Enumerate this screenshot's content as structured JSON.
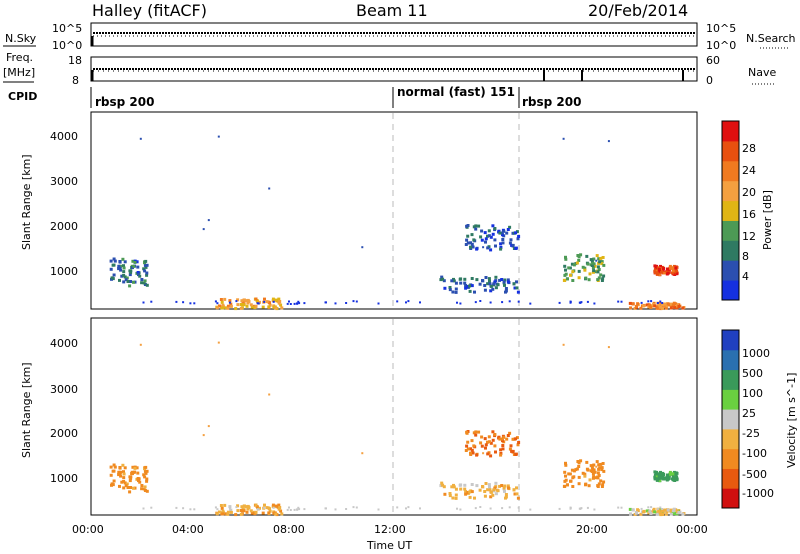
{
  "header": {
    "title": "Halley (fitACF)",
    "beam": "Beam 11",
    "date": "20/Feb/2014"
  },
  "strip1": {
    "left_label": "N.Sky",
    "right_label": "N.Search",
    "left_ticks": [
      "10^5",
      "10^0"
    ],
    "right_ticks": [
      "10^5",
      "10^0"
    ]
  },
  "strip2": {
    "left_label_1": "Freq.",
    "left_label_2": "[MHz]",
    "right_label": "Nave",
    "left_ticks": [
      "18",
      "8"
    ],
    "right_ticks": [
      "60",
      "0"
    ]
  },
  "cpid": {
    "label": "CPID",
    "segments": [
      "rbsp 200",
      "normal (fast) 151",
      "rbsp 200"
    ]
  },
  "colors": {
    "power": [
      "#1530e0",
      "#2b4fb0",
      "#2f7a62",
      "#4d9a55",
      "#e0b515",
      "#f4a040",
      "#f07a20",
      "#e85010",
      "#e01010"
    ],
    "velocity": [
      "#d01010",
      "#e85a10",
      "#f08a20",
      "#f0b040",
      "#c8c8c8",
      "#6ad040",
      "#3a9a5a",
      "#2a70b0",
      "#2040c0"
    ]
  },
  "chart_data": [
    {
      "type": "heatmap",
      "name": "power",
      "ylabel": "Slant Range [km]",
      "xlabel": "Time UT",
      "xticks": [
        "00:00",
        "04:00",
        "08:00",
        "12:00",
        "16:00",
        "20:00",
        "00:00"
      ],
      "yticks": [
        "1000",
        "2000",
        "3000",
        "4000"
      ],
      "xlim_hours": [
        0,
        24
      ],
      "ylim_km": [
        180,
        4500
      ],
      "colorbar": {
        "label": "Power [dB]",
        "ticks": [
          "4",
          "8",
          "12",
          "16",
          "20",
          "24",
          "28"
        ],
        "range": [
          0,
          30
        ]
      },
      "clusters": [
        {
          "t": [
            0.7,
            2.2
          ],
          "r": [
            700,
            1300
          ],
          "value": 7
        },
        {
          "t": [
            4.8,
            7.5
          ],
          "r": [
            200,
            420
          ],
          "value": 18
        },
        {
          "t": [
            13.8,
            16.9
          ],
          "r": [
            550,
            900
          ],
          "value": 6
        },
        {
          "t": [
            14.8,
            16.9
          ],
          "r": [
            1500,
            2050
          ],
          "value": 5
        },
        {
          "t": [
            18.7,
            20.3
          ],
          "r": [
            800,
            1400
          ],
          "value": 12
        },
        {
          "t": [
            21.3,
            23.5
          ],
          "r": [
            200,
            320
          ],
          "value": 21
        },
        {
          "t": [
            22.3,
            23.2
          ],
          "r": [
            950,
            1150
          ],
          "value": 26
        }
      ]
    },
    {
      "type": "heatmap",
      "name": "velocity",
      "ylabel": "Slant Range [km]",
      "xlabel": "Time UT",
      "xticks": [
        "00:00",
        "04:00",
        "08:00",
        "12:00",
        "16:00",
        "20:00",
        "00:00"
      ],
      "yticks": [
        "1000",
        "2000",
        "3000",
        "4000"
      ],
      "xlim_hours": [
        0,
        24
      ],
      "ylim_km": [
        180,
        4500
      ],
      "colorbar": {
        "label": "Velocity [m s^-1]",
        "ticks": [
          "1000",
          "500",
          "100",
          "25",
          "-25",
          "-100",
          "-500",
          "-1000"
        ]
      },
      "clusters": [
        {
          "t": [
            0.7,
            2.2
          ],
          "r": [
            700,
            1300
          ],
          "value": -150
        },
        {
          "t": [
            4.8,
            7.5
          ],
          "r": [
            200,
            420
          ],
          "value": -80
        },
        {
          "t": [
            13.8,
            16.9
          ],
          "r": [
            550,
            900
          ],
          "value": -60
        },
        {
          "t": [
            14.8,
            16.9
          ],
          "r": [
            1500,
            2050
          ],
          "value": -500
        },
        {
          "t": [
            18.7,
            20.3
          ],
          "r": [
            800,
            1400
          ],
          "value": -150
        },
        {
          "t": [
            21.3,
            23.5
          ],
          "r": [
            200,
            320
          ],
          "value": -20
        },
        {
          "t": [
            22.3,
            23.2
          ],
          "r": [
            950,
            1150
          ],
          "value": 150
        }
      ]
    }
  ]
}
